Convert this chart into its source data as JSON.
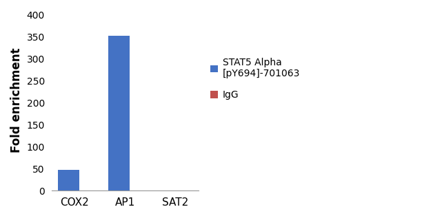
{
  "categories": [
    "COX2",
    "AP1",
    "SAT2"
  ],
  "series": [
    {
      "label": "STAT5 Alpha\n[pY694]-701063",
      "values": [
        48,
        352,
        1
      ],
      "color": "#4472C4"
    },
    {
      "label": "IgG",
      "values": [
        0.5,
        0.5,
        0.2
      ],
      "color": "#C0504D"
    }
  ],
  "ylabel": "Fold enrichment",
  "ylim": [
    0,
    410
  ],
  "yticks": [
    0,
    50,
    100,
    150,
    200,
    250,
    300,
    350,
    400
  ],
  "bar_width": 0.55,
  "background_color": "#FFFFFF",
  "legend_fontsize": 10,
  "ylabel_fontsize": 12,
  "tick_fontsize": 10,
  "xlabel_fontsize": 11,
  "figsize": [
    6.41,
    3.17
  ],
  "dpi": 100
}
